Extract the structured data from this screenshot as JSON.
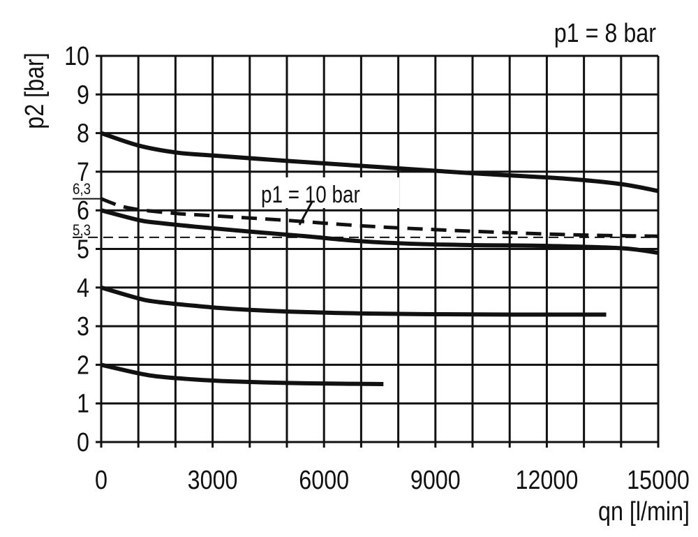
{
  "chart_data": {
    "type": "line",
    "title": "p1 = 8 bar",
    "xlabel": "qn [l/min]",
    "ylabel": "p2 [bar]",
    "xlim": [
      0,
      15000
    ],
    "ylim": [
      0,
      10
    ],
    "x_ticks": [
      "0",
      "3000",
      "6000",
      "9000",
      "12000",
      "15000"
    ],
    "y_ticks": [
      "0",
      "1",
      "2",
      "3",
      "4",
      "5",
      "6",
      "7",
      "8",
      "9",
      "10"
    ],
    "grid": true,
    "grid_x_step": 1000,
    "grid_y_step": 1,
    "color": "#111111",
    "series": [
      {
        "style": "solid",
        "x": [
          0,
          1000,
          2000,
          3000,
          5000,
          7500,
          10000,
          12500,
          14000,
          15000
        ],
        "y": [
          8.0,
          7.68,
          7.5,
          7.42,
          7.28,
          7.12,
          6.96,
          6.82,
          6.68,
          6.5
        ]
      },
      {
        "style": "solid",
        "x": [
          0,
          1000,
          1500,
          2500,
          4000,
          5500,
          7000,
          8500,
          10000,
          12000,
          14000,
          15000
        ],
        "y": [
          6.0,
          5.75,
          5.68,
          5.58,
          5.45,
          5.33,
          5.2,
          5.13,
          5.1,
          5.08,
          5.02,
          4.9
        ]
      },
      {
        "style": "solid",
        "x": [
          0,
          1000,
          1500,
          2500,
          3500,
          5000,
          7000,
          9000,
          11000,
          13000,
          13600
        ],
        "y": [
          4.0,
          3.72,
          3.63,
          3.53,
          3.45,
          3.38,
          3.33,
          3.31,
          3.3,
          3.3,
          3.3
        ]
      },
      {
        "style": "solid",
        "x": [
          0,
          1000,
          1500,
          2500,
          3500,
          5000,
          6500,
          7600
        ],
        "y": [
          2.0,
          1.78,
          1.7,
          1.62,
          1.57,
          1.53,
          1.51,
          1.5
        ]
      },
      {
        "name": "p1 = 10 bar",
        "style": "dashed",
        "x": [
          0,
          500,
          1000,
          2000,
          3000,
          5000,
          7000,
          9000,
          11000,
          13000,
          15000
        ],
        "y": [
          6.3,
          6.12,
          6.02,
          5.92,
          5.86,
          5.74,
          5.6,
          5.5,
          5.42,
          5.36,
          5.33
        ]
      }
    ],
    "reference_lines": [
      {
        "y": 5.3,
        "style": "dashed-thin",
        "label": "5,3"
      },
      {
        "y": 6.3,
        "style": "marker",
        "label": "6,3"
      }
    ],
    "annotations": [
      "p1 = 10 bar",
      "6,3",
      "5,3"
    ]
  }
}
